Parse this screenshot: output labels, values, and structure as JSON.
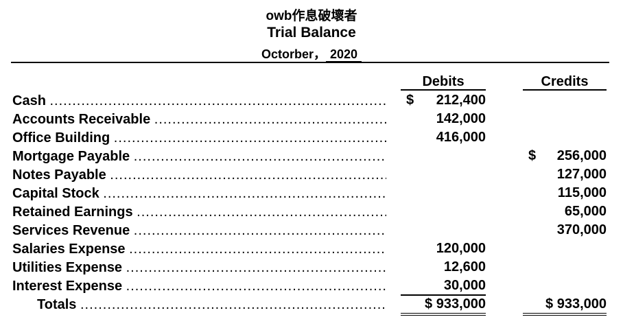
{
  "header": {
    "company": "owb作息破壞者",
    "title": "Trial Balance",
    "period_month": "Octorber，",
    "period_year": "2020"
  },
  "columns": {
    "debit": "Debits",
    "credit": "Credits"
  },
  "currency_symbol": "$",
  "leader": "..........................................................................................",
  "rows": [
    {
      "account": "Cash",
      "debit": "212,400",
      "credit": ""
    },
    {
      "account": "Accounts Receivable",
      "debit": "142,000",
      "credit": ""
    },
    {
      "account": "Office Building",
      "debit": "416,000",
      "credit": ""
    },
    {
      "account": "Mortgage Payable",
      "debit": "",
      "credit": "256,000"
    },
    {
      "account": "Notes Payable",
      "debit": "",
      "credit": "127,000"
    },
    {
      "account": "Capital Stock",
      "debit": "",
      "credit": "115,000"
    },
    {
      "account": "Retained Earnings",
      "debit": "",
      "credit": "65,000"
    },
    {
      "account": "Services Revenue",
      "debit": "",
      "credit": "370,000"
    },
    {
      "account": "Salaries Expense",
      "debit": "120,000",
      "credit": ""
    },
    {
      "account": "Utilities Expense",
      "debit": "12,600",
      "credit": ""
    },
    {
      "account": "Interest Expense",
      "debit": "30,000",
      "credit": ""
    }
  ],
  "totals": {
    "label": "Totals",
    "debit": "$ 933,000",
    "credit": "$ 933,000"
  }
}
